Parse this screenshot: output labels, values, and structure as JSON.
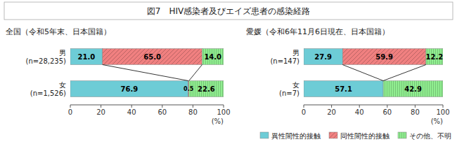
{
  "chart_data": [
    {
      "type": "bar",
      "orientation": "horizontal",
      "stacked": true,
      "data_labels": true,
      "title": "図7　HIV感染者及びエイズ患者の感染経路",
      "subtitle": "全国（令和5年末、日本国籍）",
      "xlabel": "(%)",
      "categories": [
        "男\n(n=28,235)",
        "女\n(n=1,526)"
      ],
      "series": [
        {
          "name": "異性間性的接触",
          "color": "#6dccd6",
          "values": [
            21.0,
            76.9
          ],
          "value_labels": [
            "21.0",
            "76.9"
          ]
        },
        {
          "name": "同性間性的接触",
          "color": "#f08080",
          "values": [
            65.0,
            0.5
          ],
          "value_labels": [
            "65.0",
            "0.5"
          ]
        },
        {
          "name": "その他、不明",
          "color": "#90ee90",
          "values": [
            14.0,
            22.6
          ],
          "value_labels": [
            "14.0",
            "22.6"
          ]
        }
      ],
      "xlim": [
        0,
        100
      ],
      "xticks": [
        0,
        20,
        40,
        60,
        80,
        100
      ],
      "grid": false,
      "legend": "lower right"
    },
    {
      "type": "bar",
      "orientation": "horizontal",
      "stacked": true,
      "data_labels": true,
      "subtitle": "愛媛（令和6年11月6日現在、日本国籍）",
      "xlabel": "(%)",
      "categories": [
        "男\n(n=147)",
        "女\n(n=7)"
      ],
      "series": [
        {
          "color": "#6dccd6",
          "values": [
            27.9,
            57.1
          ],
          "value_labels": [
            "27.9",
            "57.1"
          ]
        },
        {
          "color": "#f08080",
          "values": [
            59.9,
            0.0
          ],
          "value_labels": [
            "59.9",
            null
          ]
        },
        {
          "color": "#90ee90",
          "values": [
            12.2,
            42.9
          ],
          "value_labels": [
            "12.2",
            "42.9"
          ]
        }
      ],
      "xlim": [
        0,
        100
      ],
      "xticks": [
        0,
        20,
        40,
        60,
        80,
        100
      ],
      "grid": false
    }
  ]
}
